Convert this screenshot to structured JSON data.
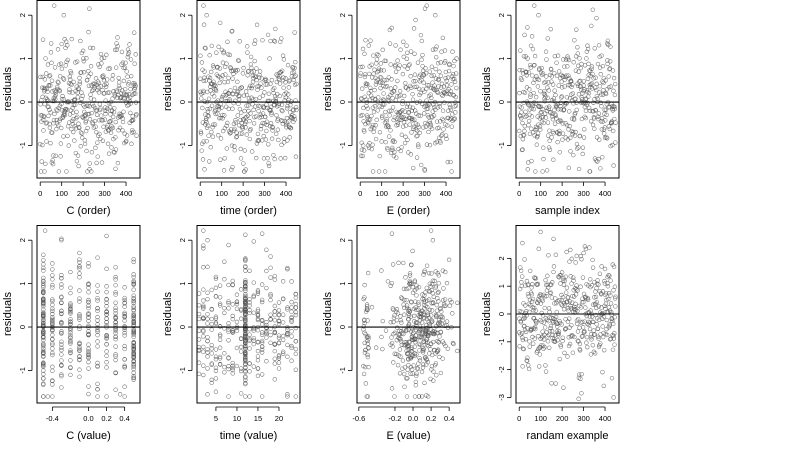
{
  "figure": {
    "background": "#ffffff",
    "point_color": "#555555",
    "line_color": "#000000"
  },
  "chart_data": [
    {
      "type": "scatter",
      "xlabel": "C (order)",
      "ylabel": "residuals",
      "xlim": [
        -15,
        465
      ],
      "ylim": [
        -1.75,
        2.35
      ],
      "xticks": [
        0,
        100,
        200,
        300,
        400
      ],
      "xticklabels": [
        "0",
        "100",
        "200",
        "300",
        "400"
      ],
      "yticks": [
        -1,
        0,
        1,
        2
      ],
      "yticklabels": [
        "-1",
        "0",
        "1",
        "2"
      ],
      "hline": 0,
      "n_points": 450,
      "x_kind": "index",
      "highlights": [
        [
          65,
          2.22
        ],
        [
          110,
          2.0
        ],
        [
          20,
          -1.6
        ],
        [
          230,
          -1.55
        ],
        [
          410,
          1.1
        ]
      ]
    },
    {
      "type": "scatter",
      "xlabel": "time (order)",
      "ylabel": "residuals",
      "xlim": [
        -15,
        465
      ],
      "ylim": [
        -1.75,
        2.35
      ],
      "xticks": [
        0,
        100,
        200,
        300,
        400
      ],
      "xticklabels": [
        "0",
        "100",
        "200",
        "300",
        "400"
      ],
      "yticks": [
        -1,
        0,
        1,
        2
      ],
      "yticklabels": [
        "-1",
        "0",
        "1",
        "2"
      ],
      "hline": 0,
      "n_points": 450,
      "x_kind": "index",
      "highlights": [
        [
          15,
          2.22
        ],
        [
          30,
          2.0
        ],
        [
          20,
          -1.55
        ],
        [
          150,
          -1.5
        ],
        [
          440,
          1.6
        ]
      ]
    },
    {
      "type": "scatter",
      "xlabel": "E (order)",
      "ylabel": "residuals",
      "xlim": [
        -15,
        465
      ],
      "ylim": [
        -1.75,
        2.35
      ],
      "xticks": [
        0,
        100,
        200,
        300,
        400
      ],
      "xticklabels": [
        "0",
        "100",
        "200",
        "300",
        "400"
      ],
      "yticks": [
        -1,
        0,
        1,
        2
      ],
      "yticklabels": [
        "-1",
        "0",
        "1",
        "2"
      ],
      "hline": 0,
      "n_points": 450,
      "x_kind": "index",
      "highlights": [
        [
          310,
          2.22
        ],
        [
          350,
          2.0
        ],
        [
          60,
          -1.6
        ],
        [
          300,
          -1.55
        ],
        [
          40,
          1.3
        ]
      ]
    },
    {
      "type": "scatter",
      "xlabel": "sample index",
      "ylabel": "residuals",
      "xlim": [
        -15,
        465
      ],
      "ylim": [
        -1.75,
        2.35
      ],
      "xticks": [
        0,
        100,
        200,
        300,
        400
      ],
      "xticklabels": [
        "0",
        "100",
        "200",
        "300",
        "400"
      ],
      "yticks": [
        -1,
        0,
        1,
        2
      ],
      "yticklabels": [
        "-1",
        "0",
        "1",
        "2"
      ],
      "hline": 0,
      "n_points": 450,
      "x_kind": "index",
      "highlights": [
        [
          70,
          2.22
        ],
        [
          90,
          2.0
        ],
        [
          40,
          -1.55
        ],
        [
          330,
          -1.6
        ],
        [
          410,
          1.35
        ]
      ]
    },
    {
      "type": "scatter",
      "xlabel": "C (value)",
      "ylabel": "residuals",
      "xlim": [
        -0.57,
        0.57
      ],
      "ylim": [
        -1.75,
        2.35
      ],
      "xticks": [
        -0.4,
        0.0,
        0.2,
        0.4
      ],
      "xticklabels": [
        "-0.4",
        "0.0",
        "0.2",
        "0.4"
      ],
      "yticks": [
        -1,
        0,
        1,
        2
      ],
      "yticklabels": [
        "-1",
        "0",
        "1",
        "2"
      ],
      "hline": 0,
      "n_points": 450,
      "x_kind": "discrete",
      "x_levels": [
        -0.5,
        -0.4,
        -0.3,
        -0.2,
        -0.1,
        0.0,
        0.1,
        0.2,
        0.3,
        0.4,
        0.5
      ],
      "x_dense_levels": [
        -0.5,
        0.5
      ],
      "highlights": [
        [
          -0.48,
          2.22
        ],
        [
          -0.3,
          2.0
        ],
        [
          -0.45,
          -1.6
        ],
        [
          0.35,
          -1.55
        ],
        [
          0.5,
          1.5
        ]
      ]
    },
    {
      "type": "scatter",
      "xlabel": "time (value)",
      "ylabel": "residuals",
      "xlim": [
        0.5,
        25
      ],
      "ylim": [
        -1.75,
        2.35
      ],
      "xticks": [
        5,
        10,
        15,
        20
      ],
      "xticklabels": [
        "5",
        "10",
        "15",
        "20"
      ],
      "yticks": [
        -1,
        0,
        1,
        2
      ],
      "yticklabels": [
        "-1",
        "0",
        "1",
        "2"
      ],
      "hline": 0,
      "n_points": 450,
      "x_kind": "discrete",
      "x_levels": [
        1,
        2,
        3,
        4,
        5,
        6,
        7,
        8,
        9,
        10,
        11,
        12,
        13,
        14,
        15,
        16,
        17,
        18,
        19,
        20,
        21,
        22,
        23,
        24
      ],
      "x_dense_levels": [
        12
      ],
      "highlights": [
        [
          2,
          2.22
        ],
        [
          3,
          2.0
        ],
        [
          3,
          -1.55
        ],
        [
          22,
          -1.55
        ],
        [
          12,
          1.55
        ]
      ]
    },
    {
      "type": "scatter",
      "xlabel": "E (value)",
      "ylabel": "residuals",
      "xlim": [
        -0.62,
        0.52
      ],
      "ylim": [
        -1.75,
        2.35
      ],
      "xticks": [
        -0.6,
        -0.2,
        0.0,
        0.2,
        0.4
      ],
      "xticklabels": [
        "-0.6",
        "-0.2",
        "0.0",
        "0.2",
        "0.4"
      ],
      "yticks": [
        -1,
        0,
        1,
        2
      ],
      "yticklabels": [
        "-1",
        "0",
        "1",
        "2"
      ],
      "hline": 0,
      "n_points": 450,
      "x_kind": "skewed",
      "highlights": [
        [
          0.2,
          2.22
        ],
        [
          0.22,
          2.0
        ],
        [
          -0.5,
          -1.6
        ],
        [
          0.1,
          -1.6
        ],
        [
          -0.35,
          1.3
        ]
      ]
    },
    {
      "type": "scatter",
      "xlabel": "randam example",
      "ylabel": "residuals",
      "xlim": [
        -15,
        465
      ],
      "ylim": [
        -3.2,
        3.2
      ],
      "xticks": [
        0,
        100,
        200,
        300,
        400
      ],
      "xticklabels": [
        "0",
        "100",
        "200",
        "300",
        "400"
      ],
      "yticks": [
        -3,
        -2,
        -1,
        0,
        1,
        2
      ],
      "yticklabels": [
        "-3",
        "-2",
        "-1",
        "0",
        "1",
        "2"
      ],
      "hline": 0,
      "n_points": 450,
      "x_kind": "index",
      "y_spread": 1.0,
      "highlights": [
        [
          15,
          2.55
        ],
        [
          100,
          2.95
        ],
        [
          160,
          2.7
        ],
        [
          290,
          -2.85
        ],
        [
          440,
          -3.0
        ],
        [
          170,
          -2.5
        ]
      ]
    }
  ]
}
